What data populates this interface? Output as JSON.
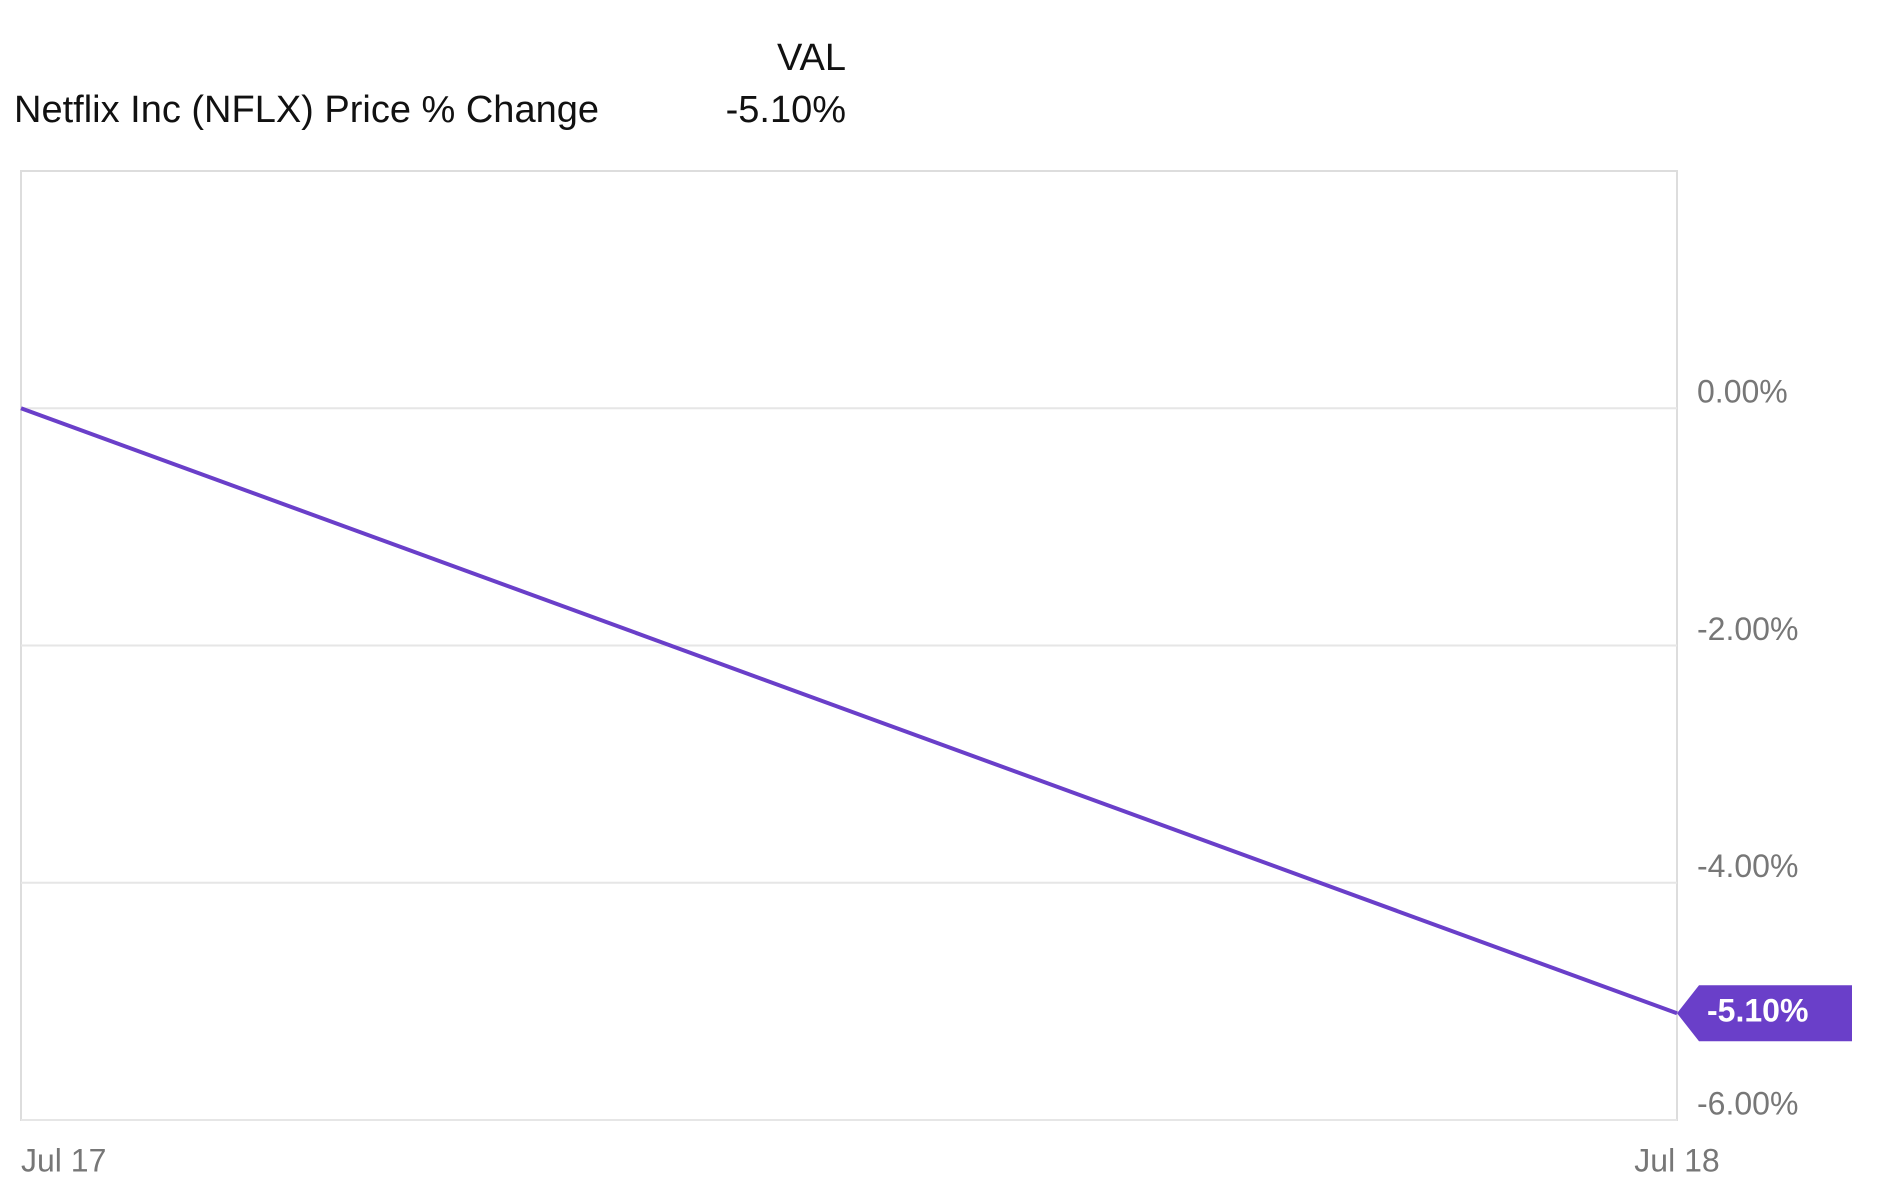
{
  "chart_data": {
    "type": "line",
    "legend_header": "VAL",
    "categories": [
      "Jul 17",
      "Jul 18"
    ],
    "series": [
      {
        "name": "Netflix Inc (NFLX) Price % Change",
        "color": "#6a3fc9",
        "values": [
          0,
          -5.1
        ],
        "value_labels": [
          null,
          "-5.10%"
        ]
      }
    ],
    "ylim": [
      -6,
      2
    ],
    "yticks": [
      {
        "value": 0,
        "label": "0.00%"
      },
      {
        "value": -2,
        "label": "-2.00%"
      },
      {
        "value": -4,
        "label": "-4.00%"
      },
      {
        "value": -6,
        "label": "-6.00%"
      }
    ],
    "y_axis_side": "right",
    "grid": true
  }
}
